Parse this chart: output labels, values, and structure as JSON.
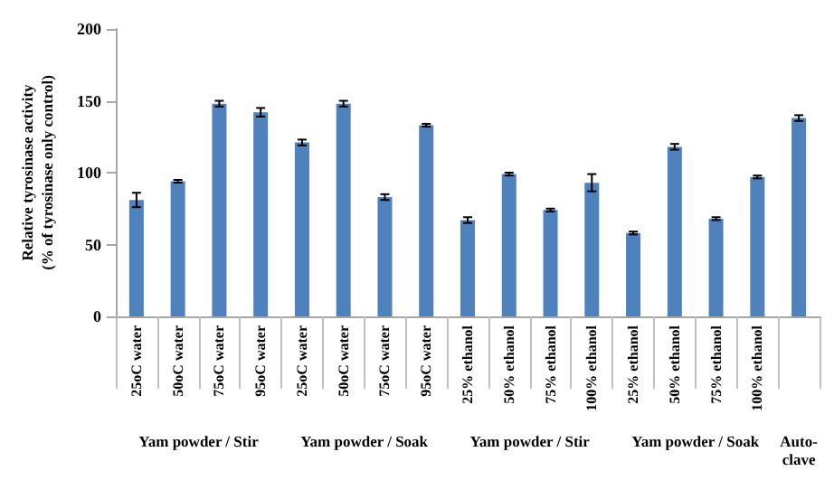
{
  "chart_data": {
    "type": "bar",
    "ylabel": "Relative tyrosinase activity\n(% of tyrosinase only control)",
    "categories": [
      "25oC water",
      "50oC water",
      "75oC water",
      "95oC water",
      "25oC water",
      "50oC water",
      "75oC water",
      "95oC water",
      "25% ethanol",
      "50% ethanol",
      "75% ethanol",
      "100% ethanol",
      "25% ethanol",
      "50% ethanol",
      "75% ethanol",
      "100% ethanol",
      null
    ],
    "values": [
      81,
      94,
      148,
      142,
      121,
      148,
      83,
      133,
      67,
      99,
      74,
      93,
      58,
      118,
      68,
      97,
      138
    ],
    "errors": [
      5,
      1,
      2,
      3,
      2,
      2,
      2,
      1,
      2,
      1,
      1,
      6,
      1,
      2,
      1,
      1,
      2
    ],
    "color": "#4f81bd",
    "ylim": [
      0,
      200
    ],
    "yticks": [
      0,
      50,
      100,
      150,
      200
    ],
    "grid": false,
    "annotations": [
      "Yam powder / Stir",
      "Yam powder / Soak",
      "Yam powder / Stir",
      "Yam powder / Soak",
      "Auto-clave"
    ]
  }
}
